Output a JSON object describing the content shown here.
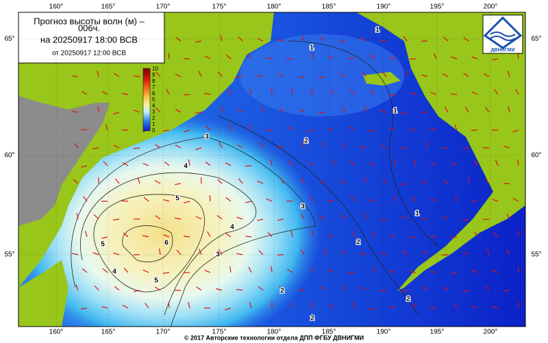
{
  "header": {
    "title": "Прогноз высоты волн (м) –",
    "lead": "006ч.",
    "valid": "на 20250917 18:00 ВСВ",
    "issued": "от 20250917 12:00 ВСВ"
  },
  "logo": {
    "label": "ДВНИГМИ"
  },
  "colorbar": {
    "labels": [
      10,
      9,
      8,
      7,
      6,
      5,
      4,
      3,
      2,
      1,
      0
    ]
  },
  "axes": {
    "lon_labels": [
      "160°",
      "165°",
      "170°",
      "175°",
      "180°",
      "185°",
      "190°",
      "195°",
      "200°"
    ],
    "lat_labels": [
      "65°",
      "60°",
      "55°"
    ]
  },
  "contour_labels": [
    "1",
    "1",
    "1",
    "1",
    "2",
    "2",
    "2",
    "2",
    "2",
    "3",
    "3",
    "3",
    "4",
    "4",
    "4",
    "5",
    "5",
    "5",
    "6"
  ],
  "footer": "© 2017 Авторские технологии отдела ДПП ФГБУ ДВНИГМИ"
}
